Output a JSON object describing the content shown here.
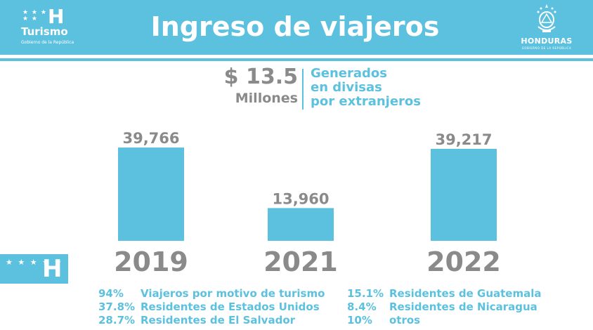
{
  "header": {
    "title": "Ingreso de viajeros",
    "left_brand": {
      "name": "Turismo",
      "subtitle": "Gobierno de la República",
      "stars": "★ ★ ★ ★ ★",
      "letter": "H"
    },
    "right_brand": {
      "name": "HONDURAS",
      "subtitle": "GOBIERNO DE LA REPÚBLICA"
    }
  },
  "summary": {
    "amount": "$ 13.5",
    "unit": "Millones",
    "description": [
      "Generados",
      "en divisas",
      "por extranjeros"
    ]
  },
  "flag": {
    "stars": "★ ★ ★ ★ ★",
    "letter": "H"
  },
  "chart_data": {
    "type": "bar",
    "categories": [
      "2019",
      "2021",
      "2022"
    ],
    "values": [
      39766,
      13960,
      39217
    ],
    "value_labels": [
      "39,766",
      "13,960",
      "39,217"
    ],
    "title": "",
    "xlabel": "",
    "ylabel": "",
    "ylim": [
      0,
      41000
    ],
    "grid": false,
    "bar_color": "#5cc1de"
  },
  "stats": {
    "left": [
      {
        "pct": "94%",
        "label": "Viajeros por motivo de turismo"
      },
      {
        "pct": "37.8%",
        "label": "Residentes de Estados Unidos"
      },
      {
        "pct": "28.7%",
        "label": "Residentes de El Salvador"
      }
    ],
    "right": [
      {
        "pct": "15.1%",
        "label": "Residentes de Guatemala"
      },
      {
        "pct": "8.4%",
        "label": "Residentes de Nicaragua"
      },
      {
        "pct": "10%",
        "label": "otros"
      }
    ]
  },
  "colors": {
    "accent": "#5cc1de",
    "text_gray": "#8a8a8a",
    "background": "#ffffff"
  }
}
